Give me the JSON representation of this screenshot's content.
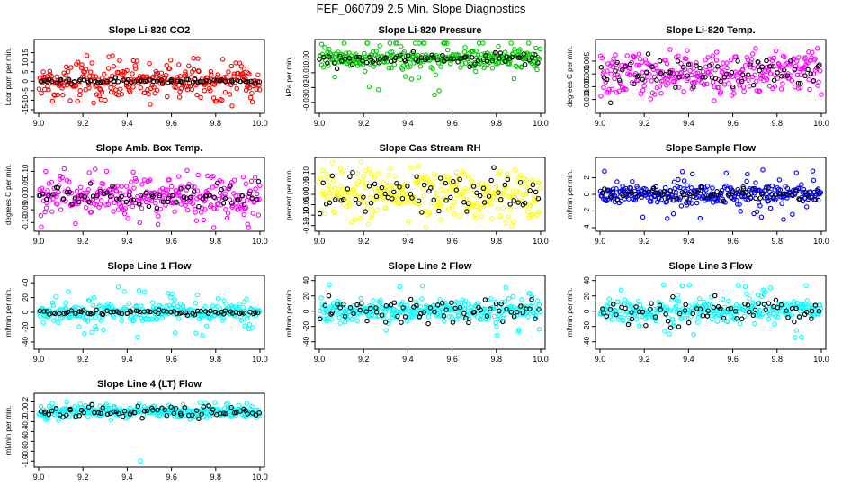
{
  "title": "FEF_060709  2.5 Min. Slope Diagnostics",
  "colors": {
    "red": "#ff0000",
    "green": "#00cc00",
    "magenta": "#ff00ff",
    "yellow": "#ffff00",
    "blue": "#0000ff",
    "cyan": "#00ffff",
    "black": "#000000"
  },
  "chart_data": [
    {
      "id": "li820-co2",
      "type": "scatter",
      "title": "Slope Li-820 CO2",
      "ylabel": "Lcor ppm per min.",
      "xlim": [
        9.0,
        10.0
      ],
      "xticks": [
        "9.0",
        "9.2",
        "9.4",
        "9.6",
        "9.8",
        "10.0"
      ],
      "ylim": [
        -15,
        20
      ],
      "yticks": [
        "-15",
        "-10",
        "-5",
        "0",
        "5",
        "10",
        "15"
      ],
      "color": "red",
      "spread": 4,
      "outlier_amp": 14,
      "highlight_x": [
        9.1,
        9.5
      ],
      "black_spread": 0.6
    },
    {
      "id": "li820-pressure",
      "type": "scatter",
      "title": "Slope Li-820 Pressure",
      "ylabel": "kPa per min.",
      "xlim": [
        9.0,
        10.0
      ],
      "xticks": [
        "9.0",
        "9.2",
        "9.4",
        "9.6",
        "9.8",
        "10.0"
      ],
      "ylim": [
        -0.035,
        0.01
      ],
      "yticks": [
        "-0.03",
        "-0.02",
        "-0.01",
        "0.00"
      ],
      "color": "green",
      "spread": 0.003,
      "outlier_amp": 0.025,
      "center": -0.0005,
      "black_spread": 0.002
    },
    {
      "id": "li820-temp",
      "type": "scatter",
      "title": "Slope Li-820 Temp.",
      "ylabel": "degrees C per min.",
      "xlim": [
        9.0,
        10.0
      ],
      "xticks": [
        "9.0",
        "9.2",
        "9.4",
        "9.6",
        "9.8",
        "10.0"
      ],
      "ylim": [
        -0.014,
        0.012
      ],
      "yticks": [
        "-0.010",
        "-0.005",
        "0.000",
        "0.005"
      ],
      "color": "magenta",
      "spread": 0.004,
      "outlier_amp": 0.009,
      "center": 0.0,
      "black_spread": 0.003
    },
    {
      "id": "amb-box-temp",
      "type": "scatter",
      "title": "Slope Amb. Box Temp.",
      "ylabel": "degrees C per min.",
      "xlim": [
        9.0,
        10.0
      ],
      "xticks": [
        "9.0",
        "9.2",
        "9.4",
        "9.6",
        "9.8",
        "10.0"
      ],
      "ylim": [
        -0.12,
        0.14
      ],
      "yticks": [
        "-0.10",
        "-0.05",
        "0.00",
        "0.05",
        "0.10"
      ],
      "color": "magenta",
      "spread": 0.04,
      "outlier_amp": 0.1,
      "center": 0.0,
      "black_spread": 0.025
    },
    {
      "id": "gas-stream-rh",
      "type": "scatter",
      "title": "Slope Gas Stream RH",
      "ylabel": "percent per min.",
      "xlim": [
        9.0,
        10.0
      ],
      "xticks": [
        "9.0",
        "9.2",
        "9.4",
        "9.6",
        "9.8",
        "10.0"
      ],
      "ylim": [
        -0.16,
        0.16
      ],
      "yticks": [
        "-0.15",
        "-0.10",
        "-0.05",
        "0.00",
        "0.05",
        "0.10"
      ],
      "color": "yellow",
      "spread": 0.06,
      "outlier_amp": 0.12,
      "center": 0.0,
      "black_spread": 0.05
    },
    {
      "id": "sample-flow",
      "type": "scatter",
      "title": "Slope Sample Flow",
      "ylabel": "ml/min per min.",
      "xlim": [
        9.0,
        10.0
      ],
      "xticks": [
        "9.0",
        "9.2",
        "9.4",
        "9.6",
        "9.8",
        "10.0"
      ],
      "ylim": [
        -4,
        4
      ],
      "yticks": [
        "-4",
        "-2",
        "0",
        "2"
      ],
      "color": "blue",
      "spread": 0.6,
      "outlier_amp": 3.2,
      "center": 0.0,
      "black_spread": 0.4
    },
    {
      "id": "line1-flow",
      "type": "scatter",
      "title": "Slope Line 1 Flow",
      "ylabel": "ml/min per min.",
      "xlim": [
        9.0,
        10.0
      ],
      "xticks": [
        "9.0",
        "9.2",
        "9.4",
        "9.6",
        "9.8",
        "10.0"
      ],
      "ylim": [
        -45,
        45
      ],
      "yticks": [
        "-40",
        "-20",
        "0",
        "20",
        "40"
      ],
      "color": "cyan",
      "spread": 6,
      "outlier_amp": 35,
      "center": 0.0,
      "black_spread": 1.5
    },
    {
      "id": "line2-flow",
      "type": "scatter",
      "title": "Slope Line 2 Flow",
      "ylabel": "ml/min per min.",
      "xlim": [
        9.0,
        10.0
      ],
      "xticks": [
        "9.0",
        "9.2",
        "9.4",
        "9.6",
        "9.8",
        "10.0"
      ],
      "ylim": [
        -45,
        42
      ],
      "yticks": [
        "-40",
        "-20",
        "0",
        "20",
        "40"
      ],
      "color": "cyan",
      "spread": 7,
      "outlier_amp": 35,
      "center": 0.0,
      "black_spread": 10
    },
    {
      "id": "line3-flow",
      "type": "scatter",
      "title": "Slope Line 3 Flow",
      "ylabel": "ml/min per min.",
      "xlim": [
        9.0,
        10.0
      ],
      "xticks": [
        "9.0",
        "9.2",
        "9.4",
        "9.6",
        "9.8",
        "10.0"
      ],
      "ylim": [
        -45,
        42
      ],
      "yticks": [
        "-40",
        "-20",
        "0",
        "20",
        "40"
      ],
      "color": "cyan",
      "spread": 7,
      "outlier_amp": 35,
      "center": 0.0,
      "black_spread": 8
    },
    {
      "id": "line4-flow",
      "type": "scatter",
      "title": "Slope Line 4 (LT) Flow",
      "ylabel": "ml/min per min.",
      "xlim": [
        9.0,
        10.0
      ],
      "xticks": [
        "9.0",
        "9.2",
        "9.4",
        "9.6",
        "9.8",
        "10.0"
      ],
      "ylim": [
        -1.05,
        0.3
      ],
      "yticks": [
        "-1.0",
        "-0.8",
        "-0.6",
        "-0.4",
        "-0.2",
        "0.0",
        "0.2"
      ],
      "color": "cyan",
      "spread": 0.06,
      "outlier_amp": 0.2,
      "center": 0.0,
      "black_spread": 0.06,
      "extreme_low": -1.0
    }
  ]
}
